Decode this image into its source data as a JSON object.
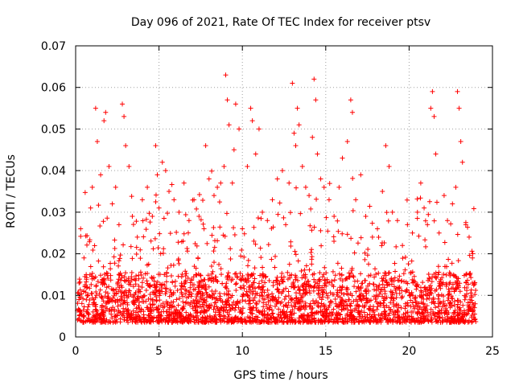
{
  "chart_data": {
    "type": "scatter",
    "title": "Day 096 of 2021, Rate Of TEC Index for receiver ptsv",
    "xlabel": "GPS time / hours",
    "ylabel": "ROTI / TECUs",
    "xlim": [
      0,
      25
    ],
    "ylim": [
      0,
      0.07
    ],
    "xticks": [
      0,
      5,
      10,
      15,
      20,
      25
    ],
    "xtick_labels": [
      "0",
      "5",
      "10",
      "15",
      "20",
      "25"
    ],
    "yticks": [
      0,
      0.01,
      0.02,
      0.03,
      0.04,
      0.05,
      0.06,
      0.07
    ],
    "ytick_labels": [
      "0",
      "0.01",
      "0.02",
      "0.03",
      "0.04",
      "0.05",
      "0.06",
      "0.07"
    ],
    "grid": true,
    "marker": "plus",
    "color": "#ff0000",
    "series": [
      {
        "name": "ROTI",
        "points": [
          [
            0.2,
            0.009
          ],
          [
            0.3,
            0.026
          ],
          [
            0.5,
            0.019
          ],
          [
            0.7,
            0.012
          ],
          [
            0.9,
            0.031
          ],
          [
            1.0,
            0.036
          ],
          [
            1.2,
            0.055
          ],
          [
            1.3,
            0.047
          ],
          [
            1.5,
            0.039
          ],
          [
            1.7,
            0.052
          ],
          [
            1.8,
            0.054
          ],
          [
            2.0,
            0.041
          ],
          [
            2.2,
            0.032
          ],
          [
            2.4,
            0.036
          ],
          [
            2.6,
            0.027
          ],
          [
            2.8,
            0.056
          ],
          [
            2.9,
            0.053
          ],
          [
            3.0,
            0.046
          ],
          [
            3.2,
            0.041
          ],
          [
            3.4,
            0.029
          ],
          [
            3.7,
            0.024
          ],
          [
            4.0,
            0.033
          ],
          [
            4.3,
            0.036
          ],
          [
            4.6,
            0.029
          ],
          [
            4.8,
            0.046
          ],
          [
            4.9,
            0.039
          ],
          [
            5.0,
            0.031
          ],
          [
            5.2,
            0.042
          ],
          [
            5.4,
            0.04
          ],
          [
            5.6,
            0.035
          ],
          [
            5.9,
            0.033
          ],
          [
            6.2,
            0.03
          ],
          [
            6.5,
            0.037
          ],
          [
            6.8,
            0.028
          ],
          [
            7.1,
            0.033
          ],
          [
            7.4,
            0.029
          ],
          [
            7.7,
            0.026
          ],
          [
            7.8,
            0.046
          ],
          [
            8.0,
            0.038
          ],
          [
            8.3,
            0.034
          ],
          [
            8.5,
            0.036
          ],
          [
            8.7,
            0.037
          ],
          [
            8.9,
            0.041
          ],
          [
            9.0,
            0.063
          ],
          [
            9.1,
            0.057
          ],
          [
            9.2,
            0.051
          ],
          [
            9.4,
            0.037
          ],
          [
            9.5,
            0.045
          ],
          [
            9.6,
            0.056
          ],
          [
            9.8,
            0.05
          ],
          [
            10.0,
            0.026
          ],
          [
            10.3,
            0.041
          ],
          [
            10.5,
            0.055
          ],
          [
            10.6,
            0.052
          ],
          [
            10.8,
            0.044
          ],
          [
            11.0,
            0.05
          ],
          [
            11.2,
            0.03
          ],
          [
            11.5,
            0.028
          ],
          [
            11.8,
            0.033
          ],
          [
            12.1,
            0.038
          ],
          [
            12.4,
            0.04
          ],
          [
            12.6,
            0.027
          ],
          [
            12.8,
            0.037
          ],
          [
            13.0,
            0.061
          ],
          [
            13.1,
            0.049
          ],
          [
            13.2,
            0.046
          ],
          [
            13.3,
            0.055
          ],
          [
            13.4,
            0.051
          ],
          [
            13.6,
            0.041
          ],
          [
            13.8,
            0.036
          ],
          [
            14.0,
            0.034
          ],
          [
            14.2,
            0.048
          ],
          [
            14.3,
            0.062
          ],
          [
            14.4,
            0.057
          ],
          [
            14.5,
            0.044
          ],
          [
            14.7,
            0.038
          ],
          [
            14.9,
            0.036
          ],
          [
            15.2,
            0.033
          ],
          [
            15.5,
            0.029
          ],
          [
            15.8,
            0.036
          ],
          [
            16.0,
            0.043
          ],
          [
            16.3,
            0.047
          ],
          [
            16.5,
            0.057
          ],
          [
            16.6,
            0.054
          ],
          [
            16.8,
            0.033
          ],
          [
            17.1,
            0.039
          ],
          [
            17.4,
            0.029
          ],
          [
            17.8,
            0.024
          ],
          [
            18.1,
            0.026
          ],
          [
            18.4,
            0.035
          ],
          [
            18.6,
            0.046
          ],
          [
            18.8,
            0.041
          ],
          [
            19.0,
            0.03
          ],
          [
            19.3,
            0.028
          ],
          [
            19.6,
            0.022
          ],
          [
            19.9,
            0.027
          ],
          [
            20.2,
            0.025
          ],
          [
            20.5,
            0.03
          ],
          [
            20.7,
            0.037
          ],
          [
            20.9,
            0.031
          ],
          [
            21.1,
            0.027
          ],
          [
            21.3,
            0.055
          ],
          [
            21.4,
            0.059
          ],
          [
            21.5,
            0.053
          ],
          [
            21.6,
            0.044
          ],
          [
            21.8,
            0.025
          ],
          [
            22.1,
            0.034
          ],
          [
            22.3,
            0.028
          ],
          [
            22.6,
            0.032
          ],
          [
            22.8,
            0.036
          ],
          [
            22.9,
            0.059
          ],
          [
            23.0,
            0.055
          ],
          [
            23.1,
            0.047
          ],
          [
            23.2,
            0.042
          ],
          [
            23.4,
            0.027
          ],
          [
            23.6,
            0.024
          ],
          [
            23.8,
            0.019
          ],
          [
            23.9,
            0.013
          ]
        ]
      }
    ]
  }
}
